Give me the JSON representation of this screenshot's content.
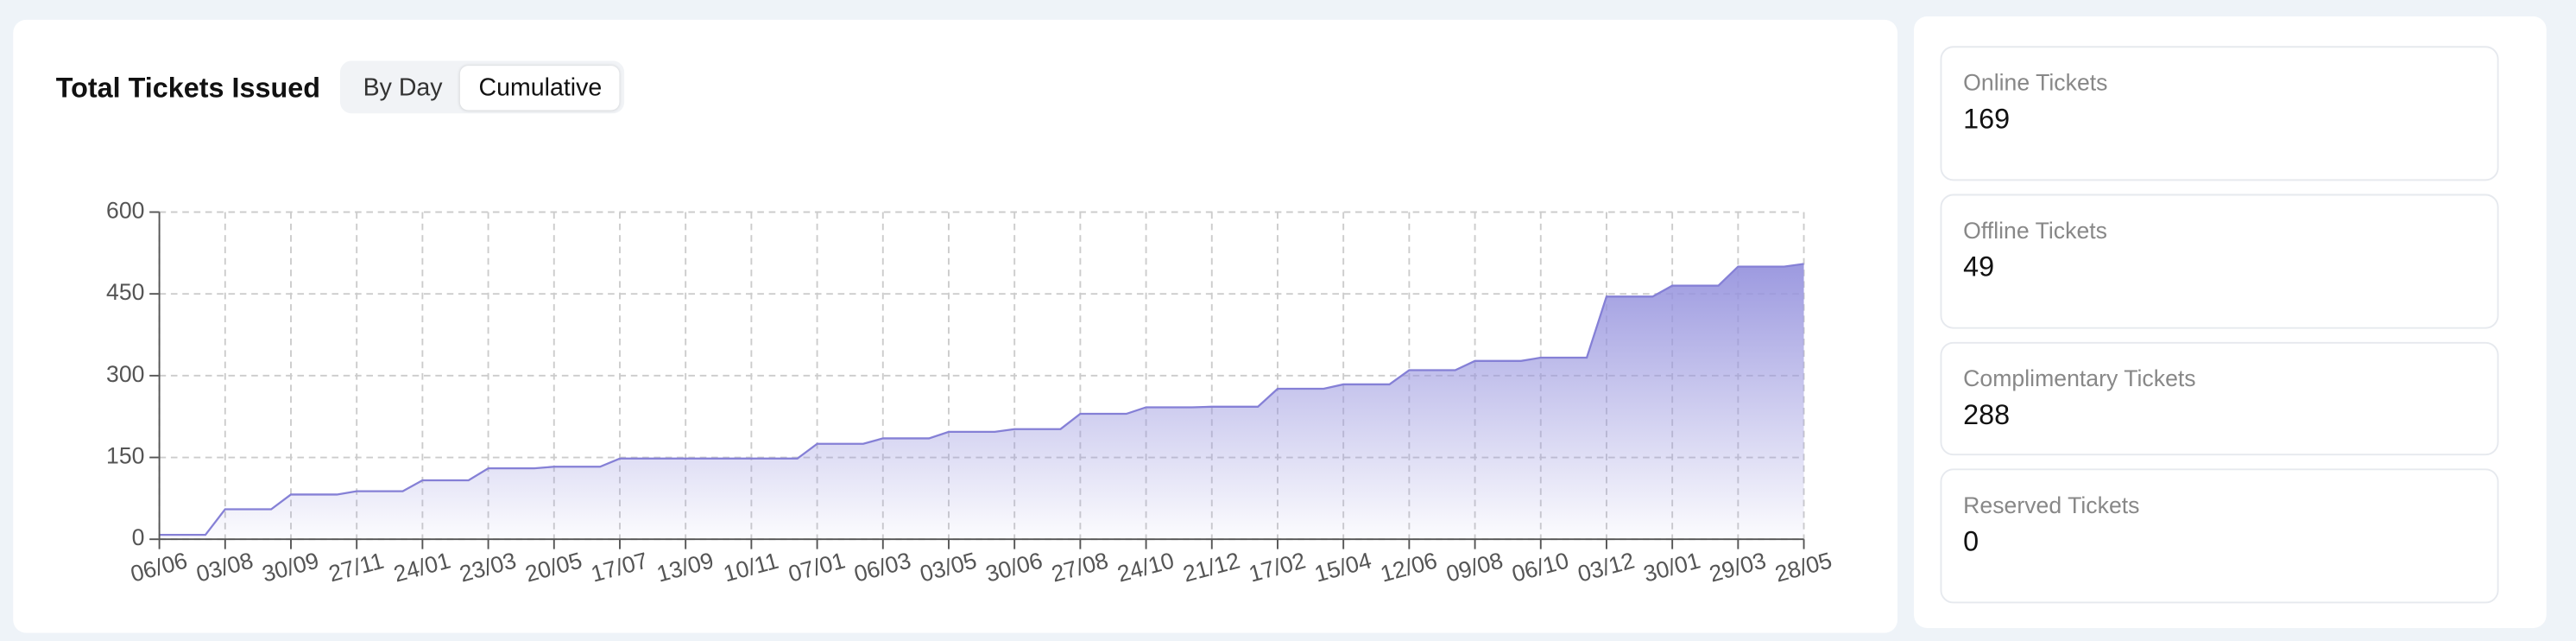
{
  "header": {
    "title": "Total Tickets Issued",
    "toggle": [
      "By Day",
      "Cumulative"
    ],
    "active_toggle": 1
  },
  "chart_data": {
    "type": "area",
    "categories": [
      "06/06",
      "03/08",
      "30/09",
      "27/11",
      "24/01",
      "23/03",
      "20/05",
      "17/07",
      "13/09",
      "10/11",
      "07/01",
      "06/03",
      "03/05",
      "30/06",
      "27/08",
      "24/10",
      "21/12",
      "17/02",
      "15/04",
      "12/06",
      "09/08",
      "06/10",
      "03/12",
      "30/01",
      "29/03",
      "28/05"
    ],
    "values": [
      8,
      55,
      82,
      88,
      108,
      130,
      133,
      148,
      148,
      148,
      175,
      185,
      197,
      202,
      230,
      242,
      243,
      276,
      284,
      310,
      327,
      333,
      445,
      465,
      500,
      505
    ],
    "color": "#8580d6",
    "ylim": [
      0,
      600
    ],
    "yticks": [
      0,
      150,
      300,
      450,
      600
    ],
    "grid": true
  },
  "stats": [
    {
      "label": "Online Tickets",
      "value": 169
    },
    {
      "label": "Offline Tickets",
      "value": 49
    },
    {
      "label": "Complimentary Tickets",
      "value": 288
    },
    {
      "label": "Reserved Tickets",
      "value": 0
    }
  ]
}
